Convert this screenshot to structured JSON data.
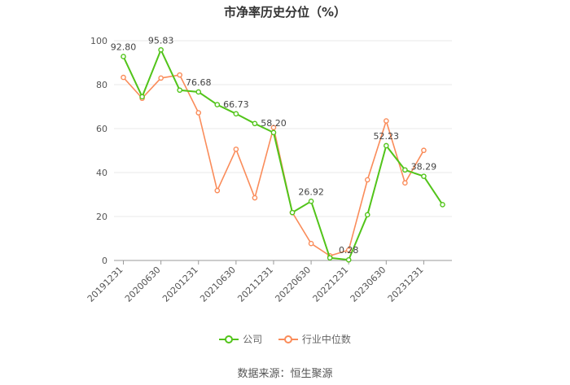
{
  "title": "市净率历史分位（%）",
  "source_note": "数据来源：恒生聚源",
  "colors": {
    "company": "#52c41a",
    "industry": "#fa8c5a",
    "grid": "#e8e8e8",
    "axis": "#999999",
    "label": "#555555"
  },
  "chart_data": {
    "type": "line",
    "title": "市净率历史分位（%）",
    "xlabel": "",
    "ylabel": "",
    "ylim": [
      0,
      100
    ],
    "yticks": [
      0,
      20,
      40,
      60,
      80,
      100
    ],
    "grid": true,
    "legend_position": "bottom",
    "tick_labels": [
      "20191231",
      "20200630",
      "20201231",
      "20210630",
      "20211231",
      "20220630",
      "20221231",
      "20230630",
      "20231231"
    ],
    "tick_positions": [
      0,
      2,
      4,
      6,
      8,
      10,
      12,
      14,
      16
    ],
    "x": [
      "20191231",
      "20200331",
      "20200630",
      "20200930",
      "20201231",
      "20210331",
      "20210630",
      "20210930",
      "20211231",
      "20220331",
      "20220630",
      "20220930",
      "20221231",
      "20230331",
      "20230630",
      "20230930",
      "20231231",
      "20240331"
    ],
    "series": [
      {
        "name": "公司",
        "color": "#52c41a",
        "values": [
          92.8,
          74.5,
          95.83,
          77.5,
          76.68,
          70.9,
          66.73,
          62.3,
          58.2,
          21.8,
          26.92,
          1.2,
          0.28,
          20.8,
          52.23,
          41.2,
          38.29,
          25.4
        ],
        "labeled_indices": [
          0,
          2,
          4,
          6,
          8,
          10,
          12,
          14,
          16
        ],
        "data_labels": [
          "92.80",
          "95.83",
          "76.68",
          "66.73",
          "58.20",
          "26.92",
          "0.28",
          "52.23",
          "38.29"
        ]
      },
      {
        "name": "行业中位数",
        "color": "#fa8c5a",
        "values": [
          83.3,
          73.8,
          83.0,
          84.4,
          67.2,
          31.8,
          50.6,
          28.5,
          60.5,
          21.8,
          7.7,
          2.1,
          4.7,
          36.7,
          63.5,
          35.3,
          50.1,
          null
        ]
      }
    ]
  }
}
